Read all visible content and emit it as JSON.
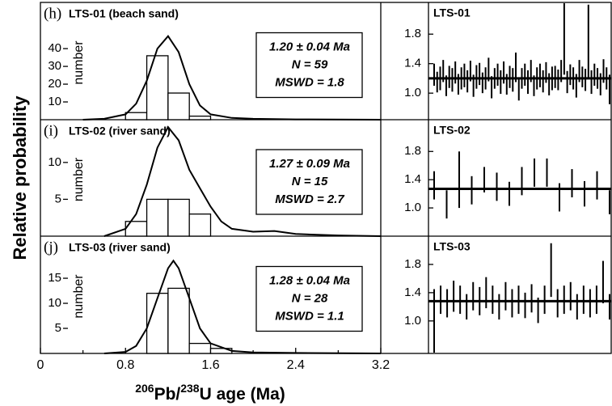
{
  "shared": {
    "ylabel": "Relative probability",
    "xlabel": [
      "206",
      "Pb/",
      "238",
      "U age (Ma)"
    ],
    "xlim": [
      0,
      3.2
    ],
    "xticks": [
      0,
      0.8,
      1.6,
      2.4,
      3.2
    ],
    "xminor": [
      0.4,
      1.2,
      2.0,
      2.8
    ]
  },
  "chart_data": [
    {
      "type": "histogram",
      "panel": "(h)",
      "title": "LTS-01 (beach sand)",
      "ylabel": "number",
      "bins": [
        0.8,
        1.0,
        1.2,
        1.4,
        1.6
      ],
      "values": [
        4,
        36,
        15,
        2
      ],
      "color": "#ffffff",
      "curve": {
        "x": [
          0.4,
          0.6,
          0.8,
          0.9,
          1.0,
          1.1,
          1.2,
          1.3,
          1.4,
          1.5,
          1.6,
          1.8,
          2.0,
          2.4,
          3.2
        ],
        "y": [
          0,
          0.5,
          3,
          9,
          22,
          40,
          47,
          38,
          20,
          8,
          3,
          1,
          0.5,
          0.2,
          0
        ]
      },
      "ylim": [
        0,
        66
      ],
      "yticks": [
        10,
        20,
        30,
        40
      ],
      "annotation": [
        "1.20 ± 0.04 Ma",
        "N = 59",
        "MSWD = 1.8"
      ]
    },
    {
      "type": "errorbar",
      "title": "LTS-01",
      "mean": 1.2,
      "color": "#000000",
      "values": [
        1.25,
        1.15,
        1.2,
        1.3,
        1.1,
        1.22,
        1.18,
        1.28,
        1.12,
        1.2,
        1.24,
        1.16,
        1.3,
        1.1,
        1.22,
        1.26,
        1.14,
        1.2,
        1.32,
        1.08,
        1.2,
        1.25,
        1.15,
        1.28,
        1.12,
        1.22,
        1.18,
        1.35,
        1.05,
        1.2,
        1.25,
        1.15,
        1.3,
        1.1,
        1.2,
        1.24,
        1.16,
        1.28,
        1.12,
        1.2,
        1.22,
        1.18,
        1.3,
        1.75,
        1.15,
        1.25,
        1.2,
        1.1,
        1.3,
        1.22,
        1.18,
        1.7,
        1.15,
        1.25,
        1.2,
        1.12,
        1.3,
        1.2,
        1.05
      ],
      "errors": [
        0.15,
        0.14,
        0.16,
        0.15,
        0.14,
        0.15,
        0.16,
        0.15,
        0.14,
        0.15,
        0.16,
        0.15,
        0.14,
        0.15,
        0.16,
        0.15,
        0.14,
        0.15,
        0.16,
        0.15,
        0.14,
        0.15,
        0.16,
        0.15,
        0.14,
        0.15,
        0.16,
        0.2,
        0.15,
        0.14,
        0.15,
        0.16,
        0.15,
        0.14,
        0.15,
        0.16,
        0.15,
        0.14,
        0.15,
        0.16,
        0.15,
        0.14,
        0.15,
        0.5,
        0.15,
        0.14,
        0.15,
        0.16,
        0.15,
        0.14,
        0.15,
        0.5,
        0.16,
        0.15,
        0.14,
        0.15,
        0.16,
        0.15,
        0.2
      ],
      "ylim": [
        0.64,
        2.23
      ],
      "yticks": [
        {
          "value": 1,
          "label": "1.0"
        },
        1.4,
        1.8
      ]
    },
    {
      "type": "histogram",
      "panel": "(i)",
      "title": "LTS-02 (river sand)",
      "ylabel": "number",
      "bins": [
        0.8,
        1.0,
        1.2,
        1.4,
        1.6
      ],
      "values": [
        2,
        5,
        5,
        3
      ],
      "color": "#ffffff",
      "curve": {
        "x": [
          0.6,
          0.8,
          0.9,
          1.0,
          1.1,
          1.2,
          1.3,
          1.4,
          1.5,
          1.6,
          1.7,
          1.8,
          2.0,
          2.2,
          2.4,
          2.8,
          3.2
        ],
        "y": [
          0,
          1,
          3,
          7,
          12,
          14.8,
          13,
          9,
          6.5,
          4,
          2,
          1,
          0.6,
          0.7,
          0.3,
          0.1,
          0
        ]
      },
      "ylim": [
        0,
        15.8
      ],
      "yticks": [
        5,
        10
      ],
      "annotation": [
        "1.27 ± 0.09 Ma",
        "N = 15",
        "MSWD = 2.7"
      ]
    },
    {
      "type": "errorbar",
      "title": "LTS-02",
      "mean": 1.27,
      "color": "#000000",
      "values": [
        1.32,
        1.05,
        1.4,
        1.25,
        1.4,
        1.3,
        1.2,
        1.38,
        1.5,
        1.5,
        1.15,
        1.35,
        1.2,
        1.32,
        1.08
      ],
      "errors": [
        0.2,
        0.2,
        0.4,
        0.2,
        0.18,
        0.2,
        0.17,
        0.2,
        0.2,
        0.2,
        0.2,
        0.2,
        0.18,
        0.2,
        0.17
      ],
      "ylim": [
        0.6,
        2.25
      ],
      "yticks": [
        {
          "value": 1,
          "label": "1.0"
        },
        1.4,
        1.8
      ]
    },
    {
      "type": "histogram",
      "panel": "(j)",
      "title": "LTS-03 (river sand)",
      "ylabel": "number",
      "bins": [
        1.0,
        1.2,
        1.4,
        1.6,
        1.8
      ],
      "values": [
        12,
        13,
        2,
        1
      ],
      "color": "#ffffff",
      "curve": {
        "x": [
          0.6,
          0.8,
          0.9,
          1.0,
          1.1,
          1.2,
          1.25,
          1.3,
          1.4,
          1.5,
          1.6,
          1.8,
          2.0,
          2.4,
          3.2
        ],
        "y": [
          0,
          0.3,
          1.5,
          5,
          11,
          17,
          18.5,
          17,
          11,
          5,
          2,
          0.5,
          0.2,
          0.1,
          0
        ]
      },
      "ylim": [
        0,
        23.4
      ],
      "yticks": [
        5,
        10,
        15
      ],
      "annotation": [
        "1.28 ± 0.04 Ma",
        "N = 28",
        "MSWD = 1.1"
      ]
    },
    {
      "type": "errorbar",
      "title": "LTS-03",
      "mean": 1.28,
      "color": "#000000",
      "values": [
        1.0,
        1.3,
        1.25,
        1.35,
        1.3,
        1.2,
        1.35,
        1.28,
        1.4,
        1.3,
        1.2,
        1.35,
        1.25,
        1.3,
        1.22,
        1.32,
        1.15,
        1.3,
        1.72,
        1.25,
        1.3,
        1.35,
        1.2,
        1.3,
        1.25,
        1.3,
        1.55,
        1.2
      ],
      "errors": [
        0.45,
        0.2,
        0.2,
        0.22,
        0.2,
        0.18,
        0.2,
        0.2,
        0.22,
        0.2,
        0.18,
        0.2,
        0.2,
        0.2,
        0.18,
        0.2,
        0.18,
        0.2,
        0.38,
        0.2,
        0.2,
        0.2,
        0.18,
        0.2,
        0.2,
        0.2,
        0.3,
        0.18
      ],
      "ylim": [
        0.54,
        2.2
      ],
      "yticks": [
        {
          "value": 1,
          "label": "1.0"
        },
        1.4,
        1.8
      ]
    }
  ]
}
